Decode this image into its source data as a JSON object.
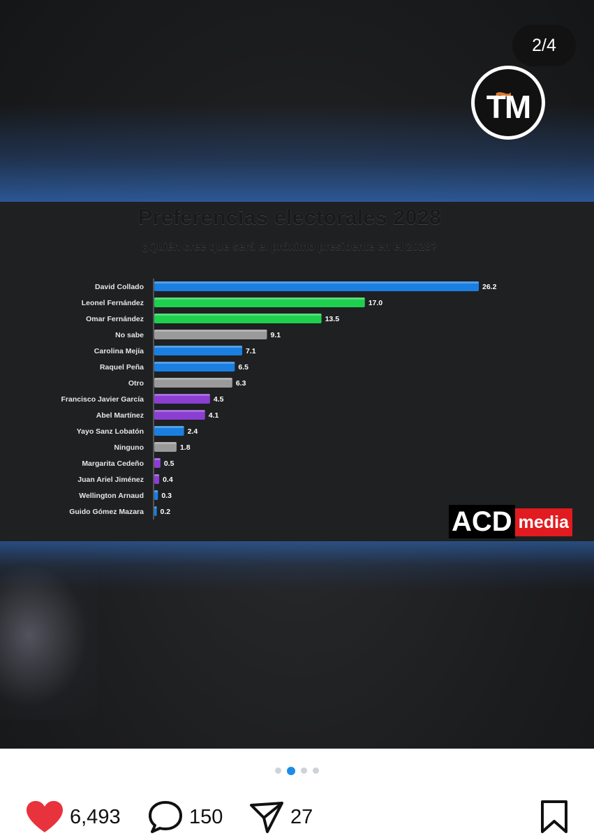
{
  "post": {
    "counter": "2/4",
    "channel_logo_text": "TM",
    "watermark": {
      "black": "ACD",
      "red": "media"
    }
  },
  "chart_data": {
    "type": "bar",
    "orientation": "horizontal",
    "title": "Preferencias electorales 2028",
    "subtitle": "¿Quién cree que será el próximo presidente en el 2028?",
    "categories": [
      "David Collado",
      "Leonel Fernández",
      "Omar Fernández",
      "No sabe",
      "Carolina Mejía",
      "Raquel Peña",
      "Otro",
      "Francisco Javier García",
      "Abel Martínez",
      "Yayo Sanz Lobatón",
      "Ninguno",
      "Margarita Cedeño",
      "Juan Ariel Jiménez",
      "Wellington Arnaud",
      "Guido Gómez Mazara"
    ],
    "values": [
      26.2,
      17.0,
      13.5,
      9.1,
      7.1,
      6.5,
      6.3,
      4.5,
      4.1,
      2.4,
      1.8,
      0.5,
      0.4,
      0.3,
      0.2
    ],
    "value_labels": [
      "26.2",
      "17.0",
      "13.5",
      "9.1",
      "7.1",
      "6.5",
      "6.3",
      "4.5",
      "4.1",
      "2.4",
      "1.8",
      "0.5",
      "0.4",
      "0.3",
      "0.2"
    ],
    "bar_colors": [
      "#1a7fe0",
      "#1fd04e",
      "#1fd04e",
      "#9a9a9a",
      "#1a7fe0",
      "#1a7fe0",
      "#9a9a9a",
      "#8a3fd0",
      "#8a3fd0",
      "#1a7fe0",
      "#9a9a9a",
      "#8a3fd0",
      "#8a3fd0",
      "#1a7fe0",
      "#1a7fe0"
    ],
    "xlim": [
      0,
      26.2
    ],
    "grid": false,
    "legend": "none"
  },
  "pagination": {
    "total": 4,
    "active_index": 1
  },
  "actions": {
    "likes": "6,493",
    "comments": "150",
    "shares": "27"
  },
  "colors": {
    "like": "#e8323c",
    "dot_active": "#1d8ce6",
    "dot_inactive": "#cfd2d6"
  },
  "icons": {
    "like": "heart-icon",
    "comment": "comment-bubble-icon",
    "share": "paper-plane-icon",
    "save": "bookmark-icon"
  }
}
